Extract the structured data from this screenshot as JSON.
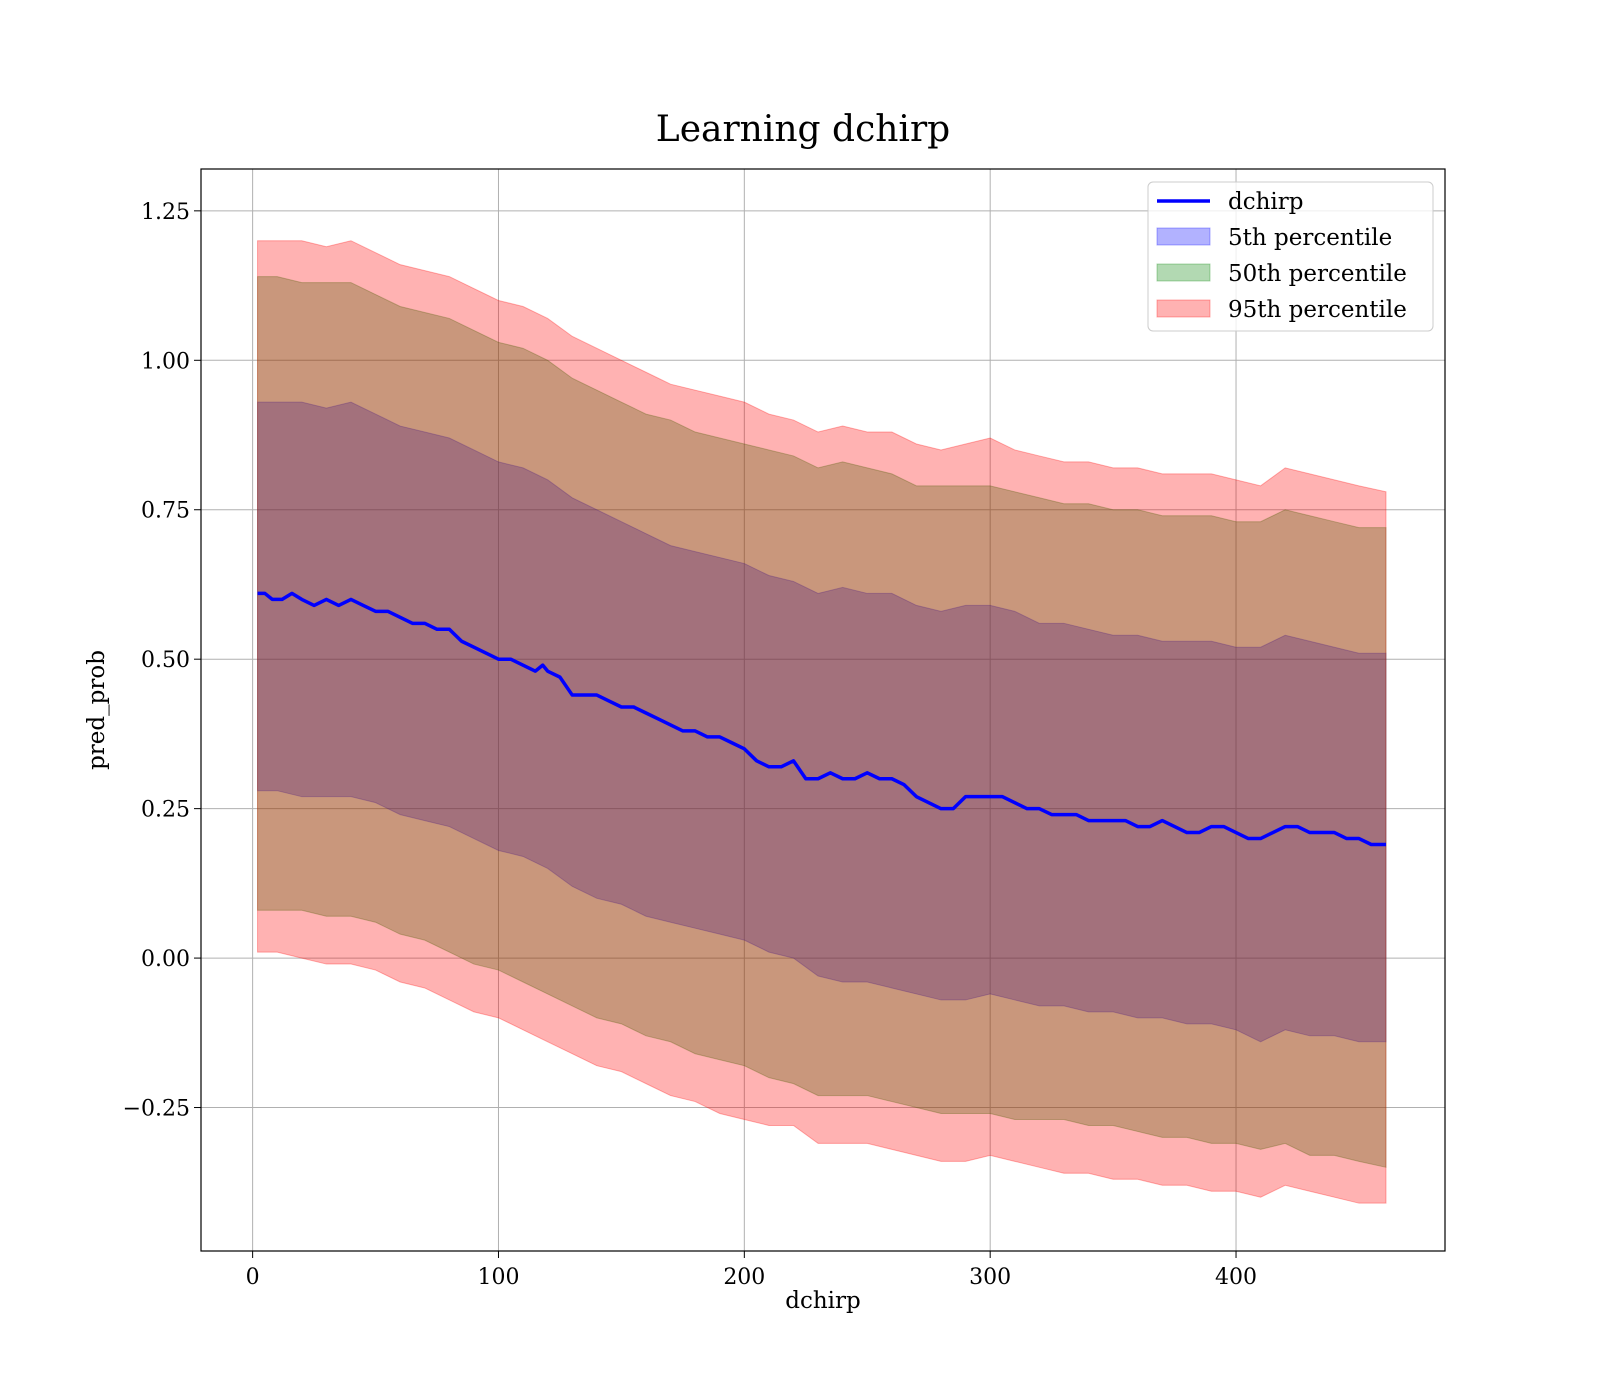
{
  "chart_data": {
    "type": "area",
    "title": "Learning dchirp",
    "xlabel": "dchirp",
    "ylabel": "pred_prob",
    "xlim": [
      -21,
      485
    ],
    "ylim": [
      -0.49,
      1.32
    ],
    "x_ticks": [
      0,
      100,
      200,
      300,
      400
    ],
    "x_tick_labels": [
      "0",
      "100",
      "200",
      "300",
      "400"
    ],
    "y_ticks": [
      -0.25,
      0.0,
      0.25,
      0.5,
      0.75,
      1.0,
      1.25
    ],
    "y_tick_labels": [
      "−0.25",
      "0.00",
      "0.25",
      "0.50",
      "0.75",
      "1.00",
      "1.25"
    ],
    "grid": true,
    "legend_position": "top-right",
    "colors": {
      "line": "#0000ff",
      "band_5": "#0000ff",
      "band_50": "#008000",
      "band_95": "#ff0000"
    },
    "line_series": {
      "name": "dchirp",
      "x": [
        2,
        5,
        8,
        12,
        16,
        20,
        25,
        30,
        35,
        40,
        45,
        50,
        55,
        60,
        65,
        70,
        75,
        80,
        85,
        90,
        95,
        100,
        105,
        110,
        115,
        118,
        120,
        125,
        130,
        135,
        140,
        145,
        150,
        155,
        160,
        165,
        170,
        175,
        180,
        185,
        190,
        195,
        200,
        205,
        210,
        215,
        220,
        225,
        230,
        235,
        240,
        245,
        250,
        255,
        260,
        265,
        270,
        275,
        280,
        285,
        290,
        295,
        300,
        305,
        310,
        315,
        320,
        325,
        330,
        335,
        340,
        345,
        350,
        355,
        360,
        365,
        370,
        375,
        380,
        385,
        390,
        395,
        400,
        405,
        410,
        415,
        420,
        425,
        430,
        435,
        440,
        445,
        450,
        455,
        461
      ],
      "values": [
        0.61,
        0.61,
        0.6,
        0.6,
        0.61,
        0.6,
        0.59,
        0.6,
        0.59,
        0.6,
        0.59,
        0.58,
        0.58,
        0.57,
        0.56,
        0.56,
        0.55,
        0.55,
        0.53,
        0.52,
        0.51,
        0.5,
        0.5,
        0.49,
        0.48,
        0.49,
        0.48,
        0.47,
        0.44,
        0.44,
        0.44,
        0.43,
        0.42,
        0.42,
        0.41,
        0.4,
        0.39,
        0.38,
        0.38,
        0.37,
        0.37,
        0.36,
        0.35,
        0.33,
        0.32,
        0.32,
        0.33,
        0.3,
        0.3,
        0.31,
        0.3,
        0.3,
        0.31,
        0.3,
        0.3,
        0.29,
        0.27,
        0.26,
        0.25,
        0.25,
        0.27,
        0.27,
        0.27,
        0.27,
        0.26,
        0.25,
        0.25,
        0.24,
        0.24,
        0.24,
        0.23,
        0.23,
        0.23,
        0.23,
        0.22,
        0.22,
        0.23,
        0.22,
        0.21,
        0.21,
        0.22,
        0.22,
        0.21,
        0.2,
        0.2,
        0.21,
        0.22,
        0.22,
        0.21,
        0.21,
        0.21,
        0.2,
        0.2,
        0.19,
        0.19
      ]
    },
    "bands": [
      {
        "name": "5th percentile",
        "x": [
          2,
          10,
          20,
          30,
          40,
          50,
          60,
          70,
          80,
          90,
          100,
          110,
          120,
          130,
          140,
          150,
          160,
          170,
          180,
          190,
          200,
          210,
          220,
          230,
          240,
          250,
          260,
          270,
          280,
          290,
          300,
          310,
          320,
          330,
          340,
          350,
          360,
          370,
          380,
          390,
          400,
          410,
          420,
          430,
          440,
          450,
          461
        ],
        "lower": [
          0.28,
          0.28,
          0.27,
          0.27,
          0.27,
          0.26,
          0.24,
          0.23,
          0.22,
          0.2,
          0.18,
          0.17,
          0.15,
          0.12,
          0.1,
          0.09,
          0.07,
          0.06,
          0.05,
          0.04,
          0.03,
          0.01,
          0.0,
          -0.03,
          -0.04,
          -0.04,
          -0.05,
          -0.06,
          -0.07,
          -0.07,
          -0.06,
          -0.07,
          -0.08,
          -0.08,
          -0.09,
          -0.09,
          -0.1,
          -0.1,
          -0.11,
          -0.11,
          -0.12,
          -0.14,
          -0.12,
          -0.13,
          -0.13,
          -0.14,
          -0.14
        ],
        "upper": [
          0.93,
          0.93,
          0.93,
          0.92,
          0.93,
          0.91,
          0.89,
          0.88,
          0.87,
          0.85,
          0.83,
          0.82,
          0.8,
          0.77,
          0.75,
          0.73,
          0.71,
          0.69,
          0.68,
          0.67,
          0.66,
          0.64,
          0.63,
          0.61,
          0.62,
          0.61,
          0.61,
          0.59,
          0.58,
          0.59,
          0.59,
          0.58,
          0.56,
          0.56,
          0.55,
          0.54,
          0.54,
          0.53,
          0.53,
          0.53,
          0.52,
          0.52,
          0.54,
          0.53,
          0.52,
          0.51,
          0.51
        ]
      },
      {
        "name": "50th percentile",
        "x": [
          2,
          10,
          20,
          30,
          40,
          50,
          60,
          70,
          80,
          90,
          100,
          110,
          120,
          130,
          140,
          150,
          160,
          170,
          180,
          190,
          200,
          210,
          220,
          230,
          240,
          250,
          260,
          270,
          280,
          290,
          300,
          310,
          320,
          330,
          340,
          350,
          360,
          370,
          380,
          390,
          400,
          410,
          420,
          430,
          440,
          450,
          461
        ],
        "lower": [
          0.08,
          0.08,
          0.08,
          0.07,
          0.07,
          0.06,
          0.04,
          0.03,
          0.01,
          -0.01,
          -0.02,
          -0.04,
          -0.06,
          -0.08,
          -0.1,
          -0.11,
          -0.13,
          -0.14,
          -0.16,
          -0.17,
          -0.18,
          -0.2,
          -0.21,
          -0.23,
          -0.23,
          -0.23,
          -0.24,
          -0.25,
          -0.26,
          -0.26,
          -0.26,
          -0.27,
          -0.27,
          -0.27,
          -0.28,
          -0.28,
          -0.29,
          -0.3,
          -0.3,
          -0.31,
          -0.31,
          -0.32,
          -0.31,
          -0.33,
          -0.33,
          -0.34,
          -0.35
        ],
        "upper": [
          1.14,
          1.14,
          1.13,
          1.13,
          1.13,
          1.11,
          1.09,
          1.08,
          1.07,
          1.05,
          1.03,
          1.02,
          1.0,
          0.97,
          0.95,
          0.93,
          0.91,
          0.9,
          0.88,
          0.87,
          0.86,
          0.85,
          0.84,
          0.82,
          0.83,
          0.82,
          0.81,
          0.79,
          0.79,
          0.79,
          0.79,
          0.78,
          0.77,
          0.76,
          0.76,
          0.75,
          0.75,
          0.74,
          0.74,
          0.74,
          0.73,
          0.73,
          0.75,
          0.74,
          0.73,
          0.72,
          0.72
        ]
      },
      {
        "name": "95th percentile",
        "x": [
          2,
          10,
          20,
          30,
          40,
          50,
          60,
          70,
          80,
          90,
          100,
          110,
          120,
          130,
          140,
          150,
          160,
          170,
          180,
          190,
          200,
          210,
          220,
          230,
          240,
          250,
          260,
          270,
          280,
          290,
          300,
          310,
          320,
          330,
          340,
          350,
          360,
          370,
          380,
          390,
          400,
          410,
          420,
          430,
          440,
          450,
          461
        ],
        "lower": [
          0.01,
          0.01,
          0.0,
          -0.01,
          -0.01,
          -0.02,
          -0.04,
          -0.05,
          -0.07,
          -0.09,
          -0.1,
          -0.12,
          -0.14,
          -0.16,
          -0.18,
          -0.19,
          -0.21,
          -0.23,
          -0.24,
          -0.26,
          -0.27,
          -0.28,
          -0.28,
          -0.31,
          -0.31,
          -0.31,
          -0.32,
          -0.33,
          -0.34,
          -0.34,
          -0.33,
          -0.34,
          -0.35,
          -0.36,
          -0.36,
          -0.37,
          -0.37,
          -0.38,
          -0.38,
          -0.39,
          -0.39,
          -0.4,
          -0.38,
          -0.39,
          -0.4,
          -0.41,
          -0.41
        ],
        "upper": [
          1.2,
          1.2,
          1.2,
          1.19,
          1.2,
          1.18,
          1.16,
          1.15,
          1.14,
          1.12,
          1.1,
          1.09,
          1.07,
          1.04,
          1.02,
          1.0,
          0.98,
          0.96,
          0.95,
          0.94,
          0.93,
          0.91,
          0.9,
          0.88,
          0.89,
          0.88,
          0.88,
          0.86,
          0.85,
          0.86,
          0.87,
          0.85,
          0.84,
          0.83,
          0.83,
          0.82,
          0.82,
          0.81,
          0.81,
          0.81,
          0.8,
          0.79,
          0.82,
          0.81,
          0.8,
          0.79,
          0.78
        ]
      }
    ]
  }
}
